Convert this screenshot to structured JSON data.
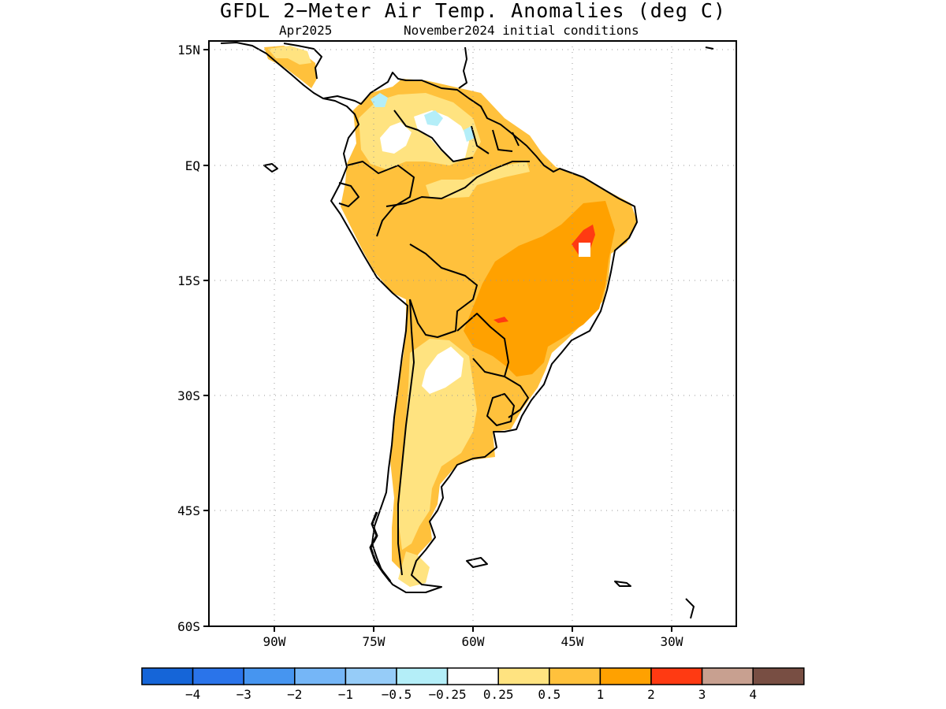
{
  "title": "GFDL 2−Meter Air Temp. Anomalies (deg C)",
  "subtitle_left": "Apr2025",
  "subtitle_right": "November2024 initial conditions",
  "lat_labels": [
    "15N",
    "EQ",
    "15S",
    "30S",
    "45S",
    "60S"
  ],
  "lon_labels": [
    "90W",
    "75W",
    "60W",
    "45W",
    "30W"
  ],
  "colorbar": {
    "colors": [
      "#1565d8",
      "#2a74ea",
      "#4695f0",
      "#75b6f7",
      "#96ccf8",
      "#b4eef8",
      "#ffffff",
      "#ffe380",
      "#ffc13c",
      "#ffa100",
      "#ff3a12",
      "#c8a090",
      "#784e43"
    ],
    "labels": [
      "−4",
      "−3",
      "−2",
      "−1",
      "−0.5",
      "−0.25",
      "0.25",
      "0.5",
      "1",
      "2",
      "3",
      "4"
    ]
  },
  "colors": {
    "land_base": "#ffc13c",
    "warm_1_2": "#ffa100",
    "warm_05_1": "#ffe380",
    "hot_2_3": "#ff3a12",
    "cool": "#b4eef8",
    "coast": "#000000"
  }
}
